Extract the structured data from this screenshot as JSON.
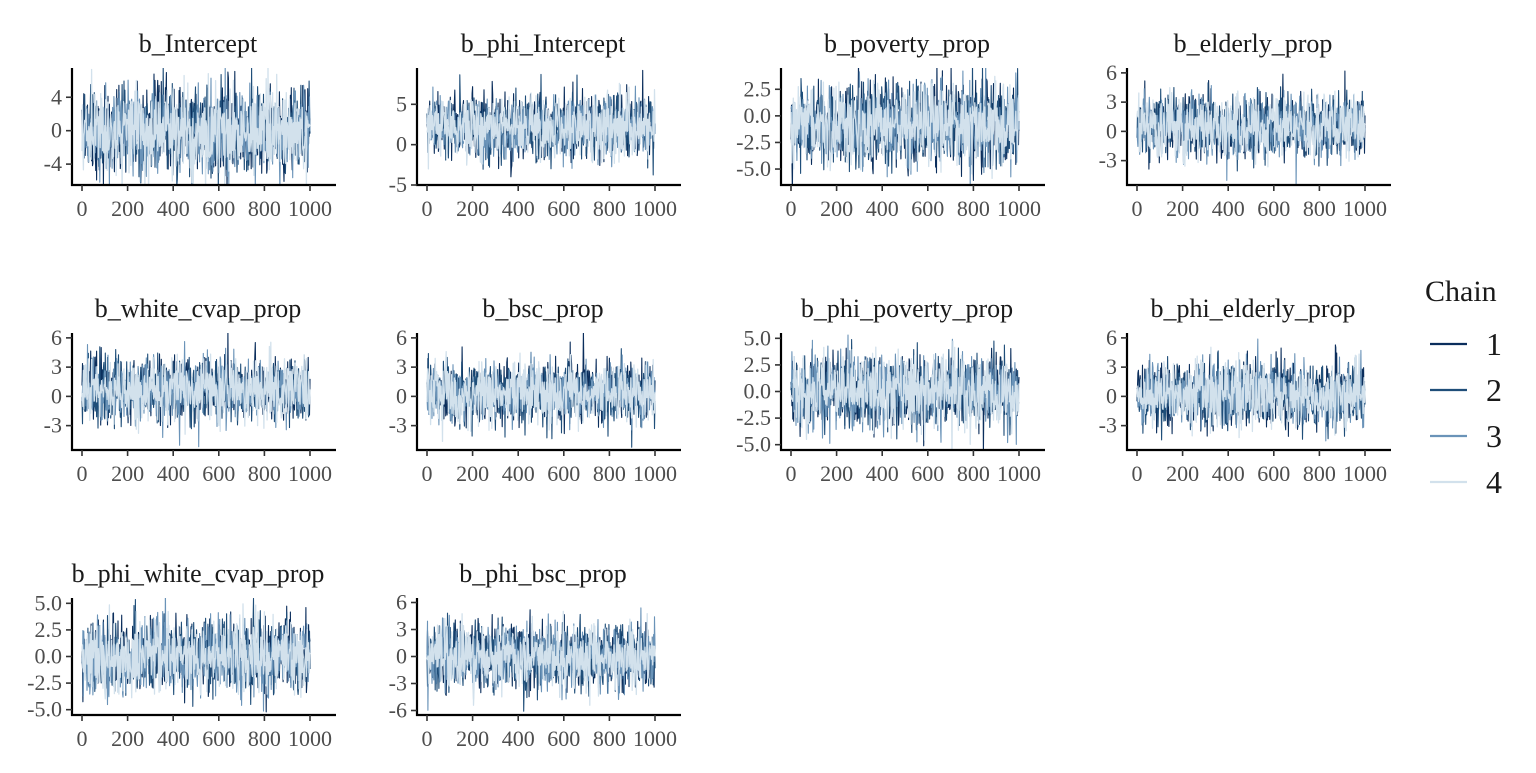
{
  "chart_data": {
    "type": "line",
    "legend": {
      "title": "Chain",
      "placement": "right",
      "entries": [
        {
          "label": "1",
          "color": "#0b2e5c"
        },
        {
          "label": "2",
          "color": "#1f4e79"
        },
        {
          "label": "3",
          "color": "#6a93b8"
        },
        {
          "label": "4",
          "color": "#d2e1ec"
        }
      ]
    },
    "panels": [
      {
        "title": "b_Intercept",
        "ylim": [
          -6.5,
          7.5
        ],
        "yticks": [
          -4,
          0,
          4
        ],
        "ytick_labels": [
          "-4",
          "0",
          "4"
        ],
        "mean": 0.0,
        "sd": 2.6
      },
      {
        "title": "b_phi_Intercept",
        "ylim": [
          -5,
          9.5
        ],
        "yticks": [
          -5,
          0,
          5
        ],
        "ytick_labels": [
          "-5",
          "0",
          "5"
        ],
        "mean": 2.2,
        "sd": 1.9
      },
      {
        "title": "b_poverty_prop",
        "ylim": [
          -6.5,
          4.5
        ],
        "yticks": [
          -5,
          -2.5,
          0,
          2.5
        ],
        "ytick_labels": [
          "-5.0",
          "-2.5",
          "0.0",
          "2.5"
        ],
        "mean": -0.8,
        "sd": 1.9
      },
      {
        "title": "b_elderly_prop",
        "ylim": [
          -5.5,
          6.5
        ],
        "yticks": [
          -3,
          0,
          3,
          6
        ],
        "ytick_labels": [
          "-3",
          "0",
          "3",
          "6"
        ],
        "mean": 0.5,
        "sd": 1.6
      },
      {
        "title": "b_white_cvap_prop",
        "ylim": [
          -5.5,
          6.5
        ],
        "yticks": [
          -3,
          0,
          3,
          6
        ],
        "ytick_labels": [
          "-3",
          "0",
          "3",
          "6"
        ],
        "mean": 0.6,
        "sd": 1.6
      },
      {
        "title": "b_bsc_prop",
        "ylim": [
          -5.5,
          6.5
        ],
        "yticks": [
          -3,
          0,
          3,
          6
        ],
        "ytick_labels": [
          "-3",
          "0",
          "3",
          "6"
        ],
        "mean": 0.4,
        "sd": 1.6
      },
      {
        "title": "b_phi_poverty_prop",
        "ylim": [
          -5.5,
          5.5
        ],
        "yticks": [
          -5,
          -2.5,
          0,
          2.5,
          5
        ],
        "ytick_labels": [
          "-5.0",
          "-2.5",
          "0.0",
          "2.5",
          "5.0"
        ],
        "mean": 0.0,
        "sd": 1.7
      },
      {
        "title": "b_phi_elderly_prop",
        "ylim": [
          -5.5,
          6.5
        ],
        "yticks": [
          -3,
          0,
          3,
          6
        ],
        "ytick_labels": [
          "-3",
          "0",
          "3",
          "6"
        ],
        "mean": 0.2,
        "sd": 1.6
      },
      {
        "title": "b_phi_white_cvap_prop",
        "ylim": [
          -5.5,
          5.5
        ],
        "yticks": [
          -5,
          -2.5,
          0,
          2.5,
          5
        ],
        "ytick_labels": [
          "-5.0",
          "-2.5",
          "0.0",
          "2.5",
          "5.0"
        ],
        "mean": 0.0,
        "sd": 1.7
      },
      {
        "title": "b_phi_bsc_prop",
        "ylim": [
          -6.5,
          6.5
        ],
        "yticks": [
          -6,
          -3,
          0,
          3,
          6
        ],
        "ytick_labels": [
          "-6",
          "-3",
          "0",
          "3",
          "6"
        ],
        "mean": 0.0,
        "sd": 1.8
      }
    ],
    "x": {
      "range": [
        0,
        1000
      ],
      "ticks": [
        0,
        200,
        400,
        600,
        800,
        1000
      ],
      "tick_labels": [
        "0",
        "200",
        "400",
        "600",
        "800",
        "1000"
      ]
    },
    "iterations": 1000,
    "grid": false
  }
}
